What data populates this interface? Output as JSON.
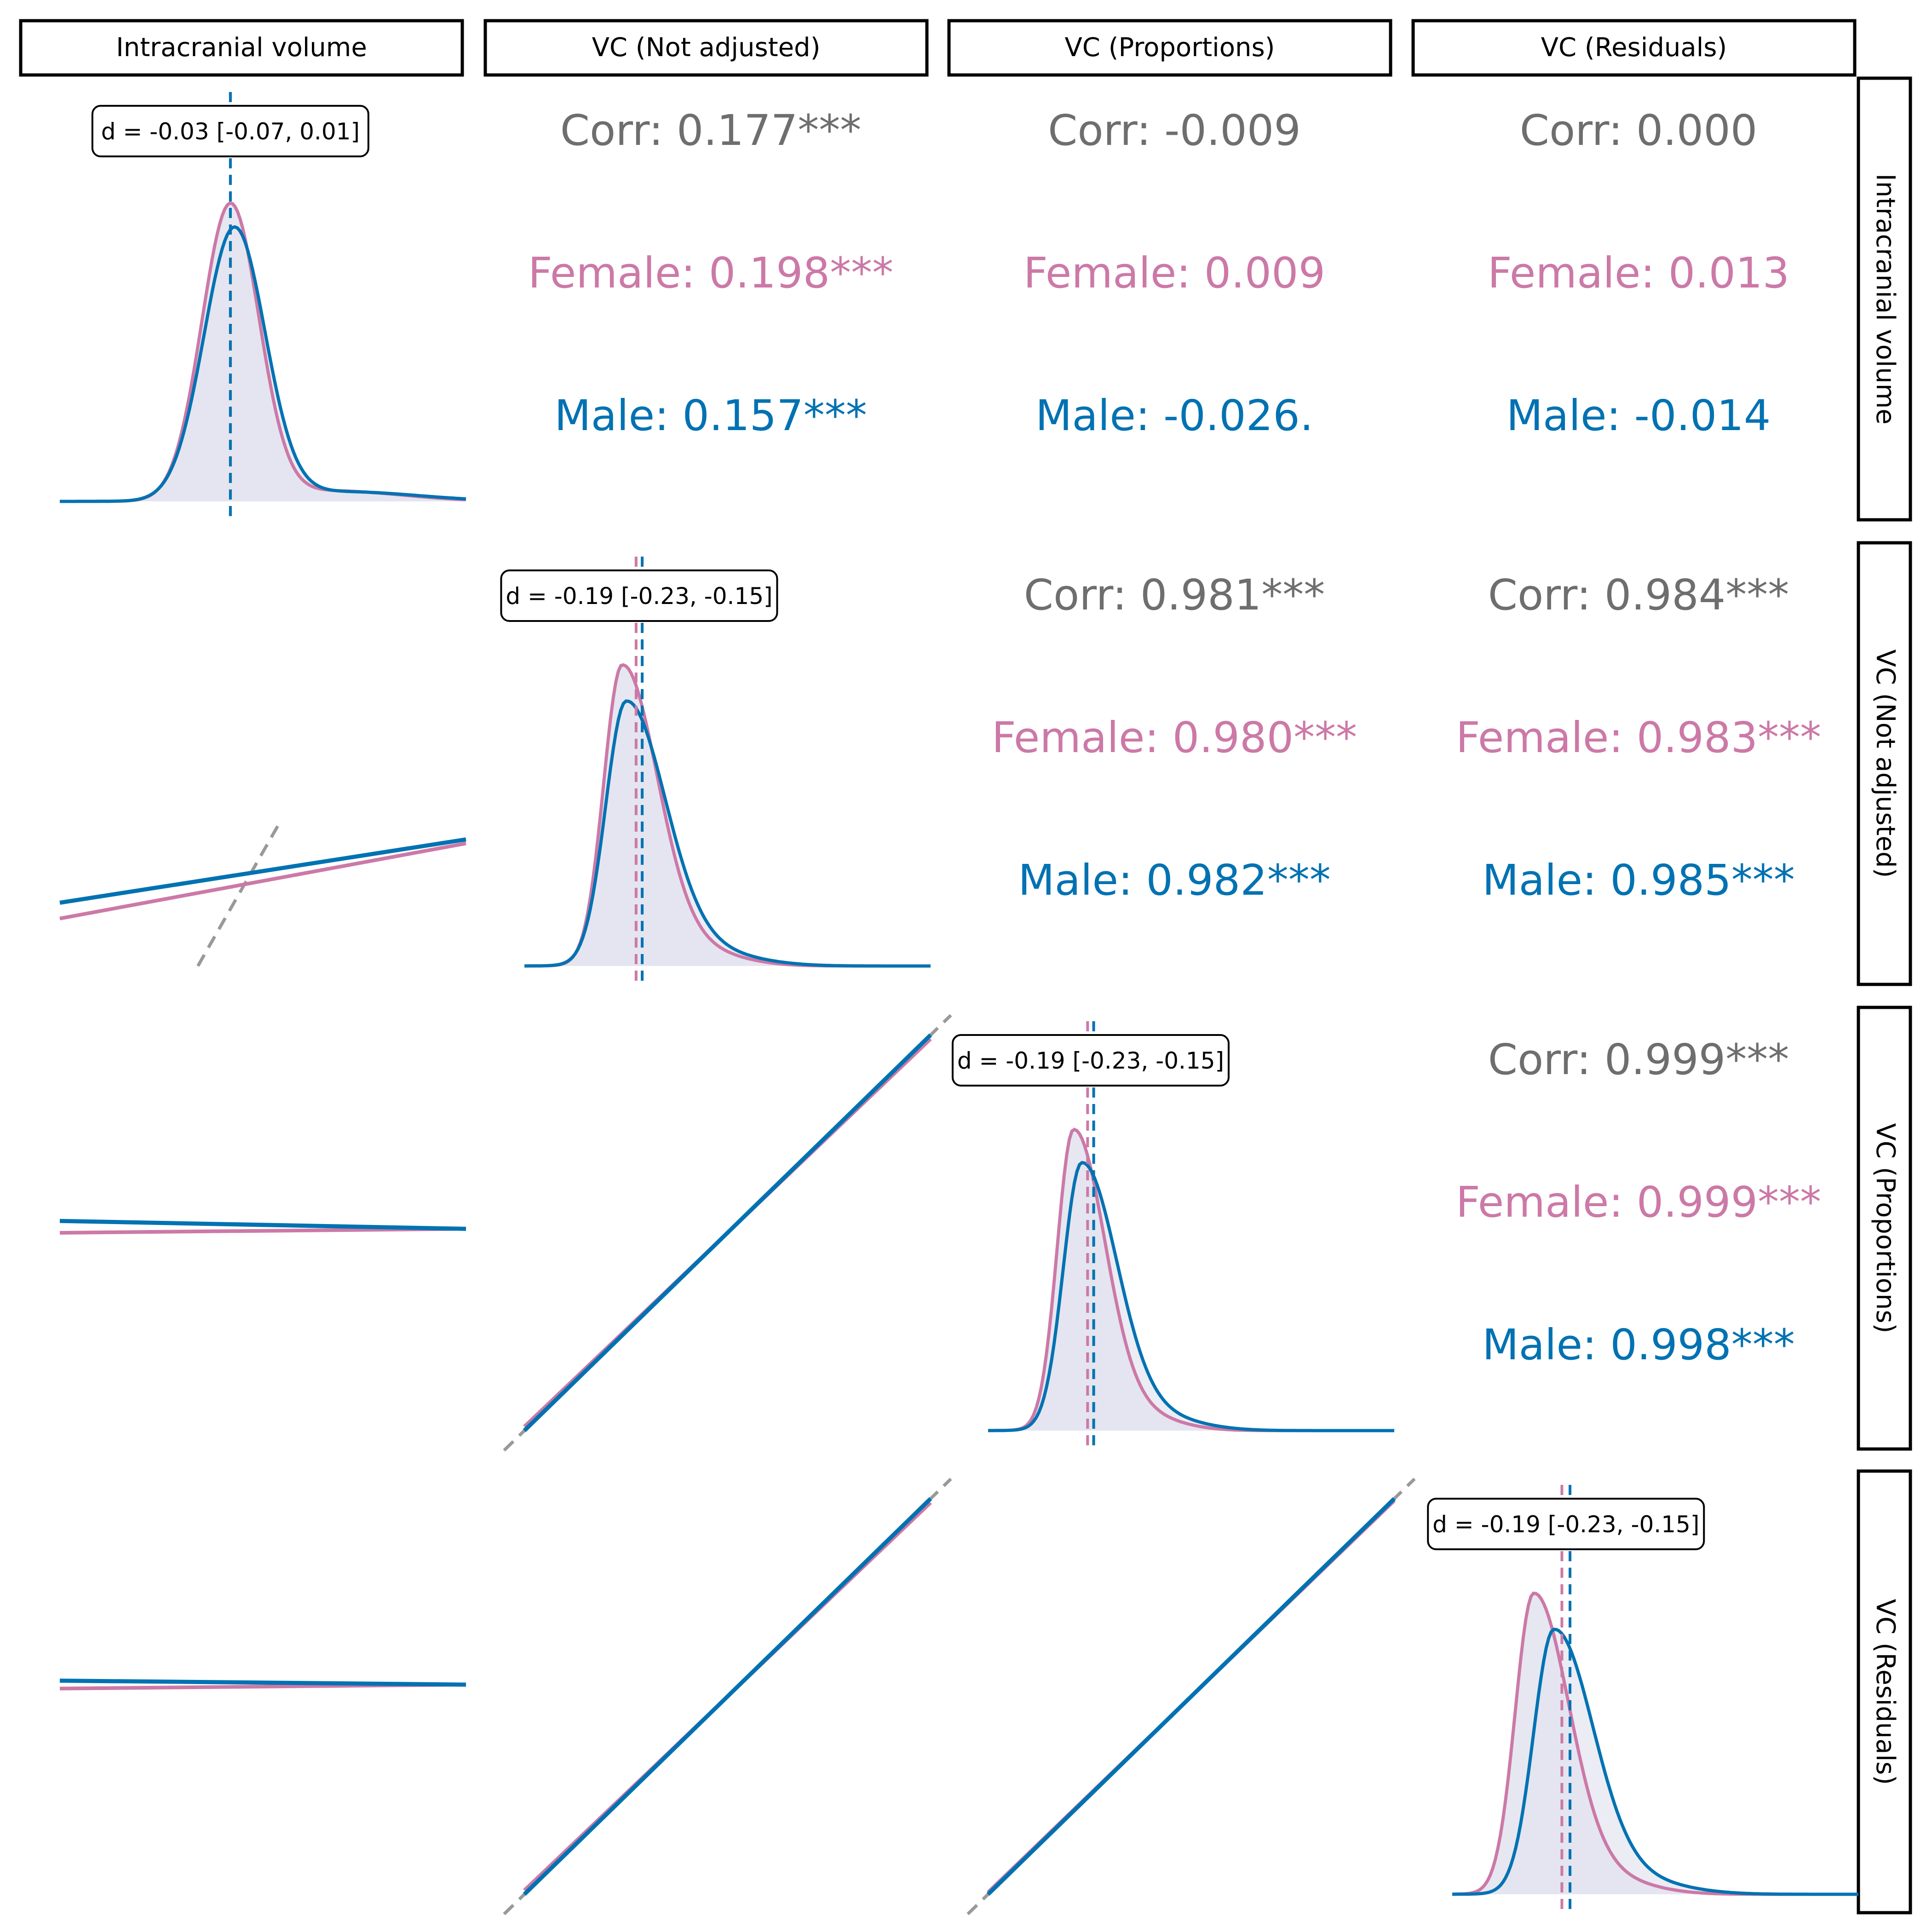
{
  "chart_data": {
    "type": "pairs",
    "variables": [
      "Intracranial volume",
      "VC (Not adjusted)",
      "VC (Proportions)",
      "VC (Residuals)"
    ],
    "colors": {
      "female": "#cc79a7",
      "male": "#0072b2",
      "corr": "#6e6e6e",
      "identity_line": "#999999",
      "density_fill": "#e3e4ef"
    },
    "groups": [
      "Female",
      "Male"
    ],
    "diagonal": [
      {
        "variable": "Intracranial volume",
        "effect_size": "d = -0.03 [-0.07, 0.01]",
        "female": {
          "peak": 0.42,
          "sd": 0.07,
          "height": 1.0,
          "skew": 0.0
        },
        "male": {
          "peak": 0.43,
          "sd": 0.075,
          "height": 0.92,
          "skew": 0.0
        },
        "female_mean": 0.42,
        "male_mean": 0.42
      },
      {
        "variable": "VC (Not adjusted)",
        "effect_size": "d = -0.19 [-0.23, -0.15]",
        "female": {
          "peak": 0.24,
          "sd": 0.045,
          "height": 1.0,
          "skew": 1.0
        },
        "male": {
          "peak": 0.25,
          "sd": 0.05,
          "height": 0.88,
          "skew": 1.0
        },
        "female_mean": 0.275,
        "male_mean": 0.29
      },
      {
        "variable": "VC (Proportions)",
        "effect_size": "d = -0.19 [-0.23, -0.15]",
        "female": {
          "peak": 0.21,
          "sd": 0.04,
          "height": 1.0,
          "skew": 1.0
        },
        "male": {
          "peak": 0.23,
          "sd": 0.045,
          "height": 0.89,
          "skew": 1.0
        },
        "female_mean": 0.245,
        "male_mean": 0.26
      },
      {
        "variable": "VC (Residuals)",
        "effect_size": "d = -0.19 [-0.23, -0.15]",
        "female": {
          "peak": 0.2,
          "sd": 0.045,
          "height": 1.0,
          "skew": 1.0
        },
        "male": {
          "peak": 0.25,
          "sd": 0.05,
          "height": 0.88,
          "skew": 1.0
        },
        "female_mean": 0.27,
        "male_mean": 0.29
      }
    ],
    "upper": [
      {
        "row": "Intracranial volume",
        "col": "VC (Not adjusted)",
        "corr": "Corr: 0.177***",
        "female": "Female: 0.198***",
        "male": "Male: 0.157***"
      },
      {
        "row": "Intracranial volume",
        "col": "VC (Proportions)",
        "corr": "Corr: -0.009",
        "female": "Female: 0.009",
        "male": "Male: -0.026."
      },
      {
        "row": "Intracranial volume",
        "col": "VC (Residuals)",
        "corr": "Corr: 0.000",
        "female": "Female: 0.013",
        "male": "Male: -0.014"
      },
      {
        "row": "VC (Not adjusted)",
        "col": "VC (Proportions)",
        "corr": "Corr: 0.981***",
        "female": "Female: 0.980***",
        "male": "Male: 0.982***"
      },
      {
        "row": "VC (Not adjusted)",
        "col": "VC (Residuals)",
        "corr": "Corr: 0.984***",
        "female": "Female: 0.983***",
        "male": "Male: 0.985***"
      },
      {
        "row": "VC (Proportions)",
        "col": "VC (Residuals)",
        "corr": "Corr: 0.999***",
        "female": "Female: 0.999***",
        "male": "Male: 0.998***"
      }
    ],
    "lower": [
      {
        "row": "VC (Not adjusted)",
        "col": "Intracranial volume",
        "female": [
          0.0,
          0.12,
          1.0,
          0.31
        ],
        "male": [
          0.0,
          0.16,
          1.0,
          0.32
        ],
        "identity": [
          0.34,
          0.0,
          0.54,
          0.36
        ]
      },
      {
        "row": "VC (Proportions)",
        "col": "Intracranial volume",
        "female": [
          0.0,
          0.5,
          1.0,
          0.51
        ],
        "male": [
          0.0,
          0.53,
          1.0,
          0.51
        ],
        "identity": null
      },
      {
        "row": "VC (Proportions)",
        "col": "VC (Not adjusted)",
        "female": [
          0.0,
          0.01,
          1.0,
          0.99
        ],
        "male": [
          0.0,
          0.0,
          1.0,
          1.0
        ],
        "identity": [
          -0.05,
          -0.05,
          1.05,
          1.05
        ]
      },
      {
        "row": "VC (Residuals)",
        "col": "Intracranial volume",
        "female": [
          0.0,
          0.52,
          1.0,
          0.53
        ],
        "male": [
          0.0,
          0.54,
          1.0,
          0.53
        ],
        "identity": null
      },
      {
        "row": "VC (Residuals)",
        "col": "VC (Not adjusted)",
        "female": [
          0.0,
          0.01,
          1.0,
          0.99
        ],
        "male": [
          0.0,
          0.0,
          1.0,
          1.0
        ],
        "identity": [
          -0.05,
          -0.05,
          1.05,
          1.05
        ]
      },
      {
        "row": "VC (Residuals)",
        "col": "VC (Proportions)",
        "female": [
          0.0,
          0.005,
          1.0,
          0.995
        ],
        "male": [
          0.0,
          0.0,
          1.0,
          1.0
        ],
        "identity": [
          -0.05,
          -0.05,
          1.05,
          1.05
        ]
      }
    ]
  }
}
